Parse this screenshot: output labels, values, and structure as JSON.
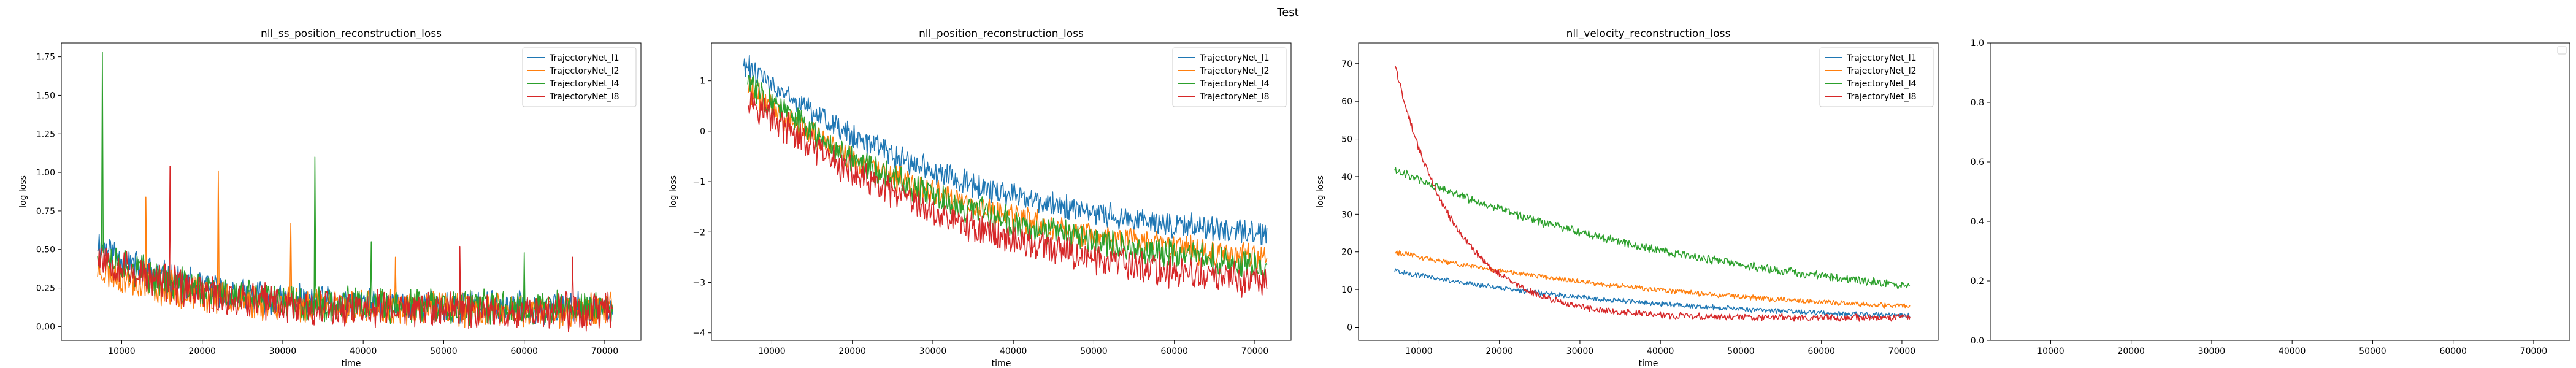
{
  "figure": {
    "suptitle": "Test"
  },
  "colors": {
    "TrajectoryNet_l1": "#1f77b4",
    "TrajectoryNet_l2": "#ff7f0e",
    "TrajectoryNet_l4": "#2ca02c",
    "TrajectoryNet_l8": "#d62728"
  },
  "chart_data": [
    {
      "type": "line",
      "title": "nll_ss_position_reconstruction_loss",
      "xlabel": "time",
      "ylabel": "log loss",
      "xlim": [
        2500,
        74500
      ],
      "ylim": [
        -0.09,
        1.84
      ],
      "xticks": [
        10000,
        20000,
        30000,
        40000,
        50000,
        60000,
        70000
      ],
      "yticks": [
        0.0,
        0.25,
        0.5,
        0.75,
        1.0,
        1.25,
        1.5,
        1.75
      ],
      "ytick_labels": [
        "0.00",
        "0.25",
        "0.50",
        "0.75",
        "1.00",
        "1.25",
        "1.50",
        "1.75"
      ],
      "legend": "upper right",
      "series": [
        {
          "name": "TrajectoryNet_l1",
          "color": "#1f77b4",
          "x_start": 7000,
          "x_end": 71000,
          "start": 0.55,
          "end": 0.12,
          "rate": 0.3,
          "noise": 0.09,
          "spikes": [],
          "seed": 11
        },
        {
          "name": "TrajectoryNet_l2",
          "color": "#ff7f0e",
          "x_start": 7000,
          "x_end": 71000,
          "start": 0.38,
          "end": 0.1,
          "rate": 0.25,
          "noise": 0.1,
          "spikes": [
            [
              13000,
              0.84
            ],
            [
              22000,
              1.01
            ],
            [
              31000,
              0.67
            ],
            [
              44000,
              0.45
            ]
          ],
          "seed": 23
        },
        {
          "name": "TrajectoryNet_l4",
          "color": "#2ca02c",
          "x_start": 7000,
          "x_end": 71000,
          "start": 0.5,
          "end": 0.12,
          "rate": 0.3,
          "noise": 0.1,
          "spikes": [
            [
              7600,
              1.78
            ],
            [
              34000,
              1.1
            ],
            [
              60000,
              0.48
            ],
            [
              41000,
              0.55
            ]
          ],
          "seed": 37
        },
        {
          "name": "TrajectoryNet_l8",
          "color": "#d62728",
          "x_start": 7000,
          "x_end": 71000,
          "start": 0.48,
          "end": 0.1,
          "rate": 0.3,
          "noise": 0.11,
          "spikes": [
            [
              16000,
              1.04
            ],
            [
              52000,
              0.52
            ],
            [
              66000,
              0.45
            ]
          ],
          "seed": 53
        }
      ]
    },
    {
      "type": "line",
      "title": "nll_position_reconstruction_loss",
      "xlabel": "time",
      "ylabel": "log loss",
      "xlim": [
        2500,
        74500
      ],
      "ylim": [
        -4.15,
        1.75
      ],
      "xticks": [
        10000,
        20000,
        30000,
        40000,
        50000,
        60000,
        70000
      ],
      "yticks": [
        -4,
        -3,
        -2,
        -1,
        0,
        1
      ],
      "ytick_labels": [
        "−4",
        "−3",
        "−2",
        "−1",
        "0",
        "1"
      ],
      "legend": "upper right",
      "series": [
        {
          "name": "TrajectoryNet_l1",
          "color": "#1f77b4",
          "x_start": 6500,
          "x_end": 71500,
          "start": 1.35,
          "end": -2.4,
          "rate": 0.12,
          "noise": 0.22,
          "spikes": [],
          "seed": 61
        },
        {
          "name": "TrajectoryNet_l2",
          "color": "#ff7f0e",
          "x_start": 7000,
          "x_end": 71500,
          "start": 0.85,
          "end": -2.85,
          "rate": 0.12,
          "noise": 0.24,
          "spikes": [],
          "seed": 71
        },
        {
          "name": "TrajectoryNet_l4",
          "color": "#2ca02c",
          "x_start": 7000,
          "x_end": 71500,
          "start": 1.0,
          "end": -3.05,
          "rate": 0.12,
          "noise": 0.26,
          "spikes": [],
          "seed": 83
        },
        {
          "name": "TrajectoryNet_l8",
          "color": "#d62728",
          "x_start": 7000,
          "x_end": 71500,
          "start": 0.7,
          "end": -3.4,
          "rate": 0.12,
          "noise": 0.28,
          "spikes": [],
          "seed": 97
        }
      ]
    },
    {
      "type": "line",
      "title": "nll_velocity_reconstruction_loss",
      "xlabel": "time",
      "ylabel": "log loss",
      "xlim": [
        2500,
        74500
      ],
      "ylim": [
        -3.5,
        75.5
      ],
      "xticks": [
        10000,
        20000,
        30000,
        40000,
        50000,
        60000,
        70000
      ],
      "yticks": [
        0,
        10,
        20,
        30,
        40,
        50,
        60,
        70
      ],
      "ytick_labels": [
        "0",
        "10",
        "20",
        "30",
        "40",
        "50",
        "60",
        "70"
      ],
      "legend": "upper right",
      "series": [
        {
          "name": "TrajectoryNet_l1",
          "color": "#1f77b4",
          "x_start": 7000,
          "x_end": 71000,
          "start": 15,
          "end": 1.0,
          "rate": 0.1,
          "noise": 0.6,
          "spikes": [],
          "seed": 101
        },
        {
          "name": "TrajectoryNet_l2",
          "color": "#ff7f0e",
          "x_start": 7000,
          "x_end": 71000,
          "start": 20,
          "end": 1.5,
          "rate": 0.08,
          "noise": 0.6,
          "spikes": [],
          "seed": 113
        },
        {
          "name": "TrajectoryNet_l4",
          "color": "#2ca02c",
          "x_start": 7000,
          "x_end": 71000,
          "start": 42,
          "end": 2.5,
          "rate": 0.08,
          "noise": 1.0,
          "spikes": [],
          "seed": 127
        },
        {
          "name": "TrajectoryNet_l8",
          "color": "#d62728",
          "x_start": 7000,
          "x_end": 71000,
          "start": 70,
          "end": 2.5,
          "rate": 0.45,
          "noise": 0.8,
          "spikes": [],
          "seed": 131
        }
      ]
    },
    {
      "type": "line",
      "title": "",
      "xlabel": "",
      "ylabel": "",
      "xlim": [
        2500,
        74500
      ],
      "ylim": [
        0.0,
        1.0
      ],
      "xticks": [
        10000,
        20000,
        30000,
        40000,
        50000,
        60000,
        70000
      ],
      "yticks": [
        0.0,
        0.2,
        0.4,
        0.6,
        0.8,
        1.0
      ],
      "ytick_labels": [
        "0.0",
        "0.2",
        "0.4",
        "0.6",
        "0.8",
        "1.0"
      ],
      "legend": "empty",
      "series": []
    }
  ]
}
